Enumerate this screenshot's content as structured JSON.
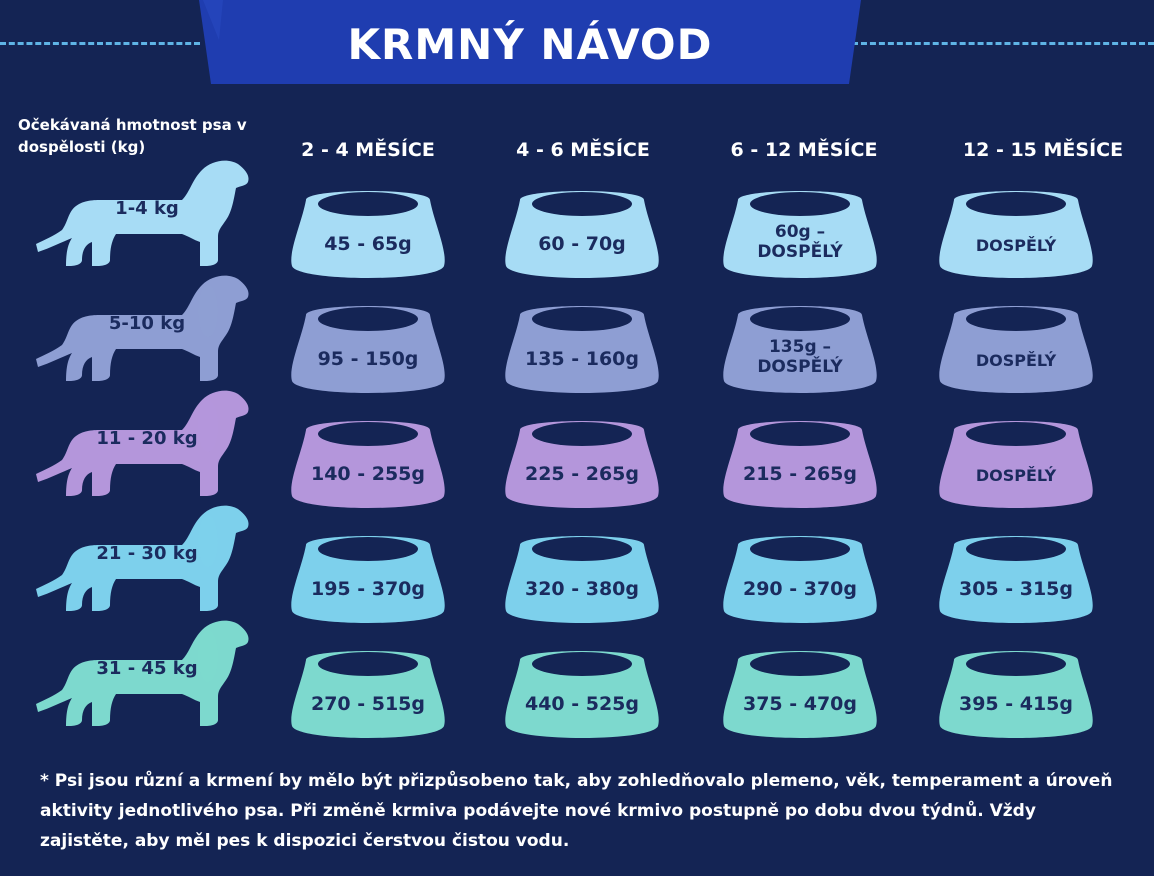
{
  "title": "KRMNÝ NÁVOD",
  "weight_heading": "Očekávaná hmotnost psa v dospělosti (kg)",
  "columns": [
    "2 - 4 MĚSÍCE",
    "4 - 6 MĚSÍCE",
    "6 - 12 MĚSÍCE",
    "12 - 15 MĚSÍCE"
  ],
  "colors": {
    "background": "#142454",
    "banner": "#1f3db0",
    "dashes": "#5fb4e6",
    "row1": "#a7dcf5",
    "row2": "#8e9ed3",
    "row3": "#b496db",
    "row4": "#7dd0ec",
    "row5": "#7dd9ce",
    "text_dark": "#1b2b5e"
  },
  "rows": [
    {
      "weight": "1-4 kg",
      "portions": [
        "45 - 65g",
        "60 - 70g",
        "60g – DOSPĚLÝ",
        "DOSPĚLÝ"
      ]
    },
    {
      "weight": "5-10 kg",
      "portions": [
        "95 - 150g",
        "135 - 160g",
        "135g – DOSPĚLÝ",
        "DOSPĚLÝ"
      ]
    },
    {
      "weight": "11 - 20 kg",
      "portions": [
        "140 - 255g",
        "225 - 265g",
        "215 - 265g",
        "DOSPĚLÝ"
      ]
    },
    {
      "weight": "21 - 30 kg",
      "portions": [
        "195 - 370g",
        "320 - 380g",
        "290 - 370g",
        "305 - 315g"
      ]
    },
    {
      "weight": "31 - 45 kg",
      "portions": [
        "270 - 515g",
        "440 - 525g",
        "375 - 470g",
        "395 - 415g"
      ]
    }
  ],
  "footnote": "* Psi jsou různí a krmení by mělo být přizpůsobeno tak, aby zohledňovalo plemeno, věk, temperament a úroveň aktivity jednotlivého psa. Při změně krmiva podávejte nové krmivo postupně po dobu dvou týdnů. Vždy zajistěte, aby měl pes k dispozici čerstvou čistou vodu."
}
